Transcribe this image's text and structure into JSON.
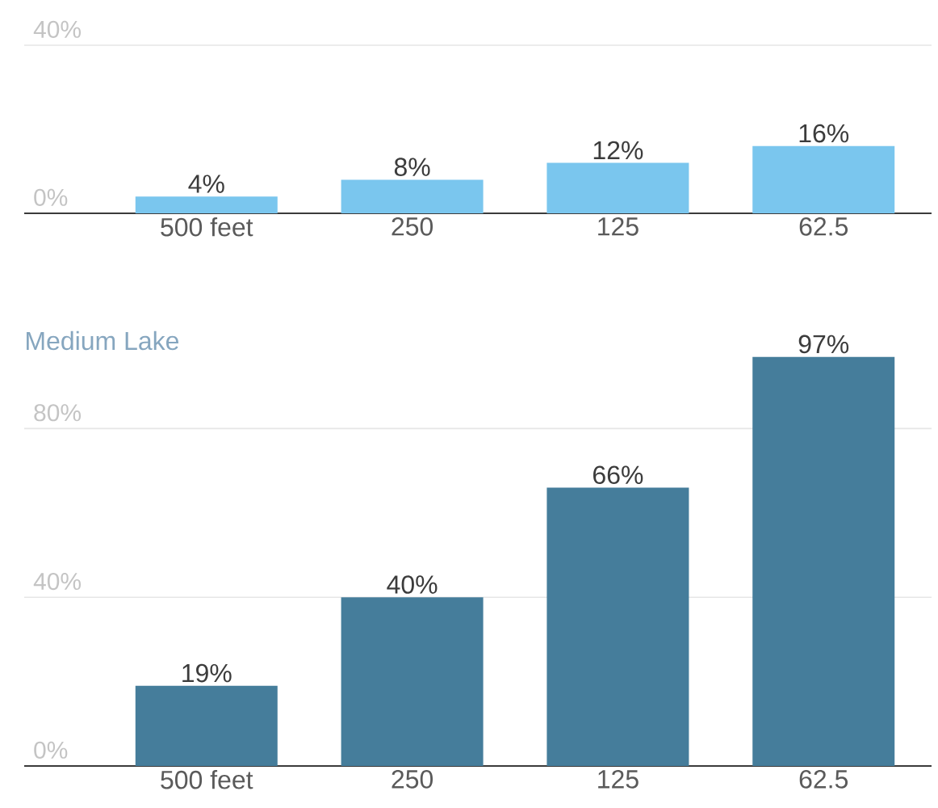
{
  "chart_data": [
    {
      "type": "bar",
      "categories": [
        "500 feet",
        "250",
        "125",
        "62.5"
      ],
      "values": [
        4,
        8,
        12,
        16
      ],
      "color": "#7ac6ee",
      "value_labels": [
        "4%",
        "8%",
        "12%",
        "16%"
      ],
      "ylim": [
        0,
        40
      ],
      "yticks": [
        {
          "value": 0,
          "label": "0%"
        },
        {
          "value": 40,
          "label": "40%"
        }
      ],
      "grid": "y"
    },
    {
      "type": "bar",
      "title": "Medium Lake",
      "categories": [
        "500 feet",
        "250",
        "125",
        "62.5"
      ],
      "values": [
        19,
        40,
        66,
        97
      ],
      "color": "#457d9b",
      "value_labels": [
        "19%",
        "40%",
        "66%",
        "97%"
      ],
      "ylim": [
        0,
        97
      ],
      "yticks": [
        {
          "value": 0,
          "label": "0%"
        },
        {
          "value": 40,
          "label": "40%"
        },
        {
          "value": 80,
          "label": "80%"
        }
      ],
      "grid": "y"
    }
  ]
}
